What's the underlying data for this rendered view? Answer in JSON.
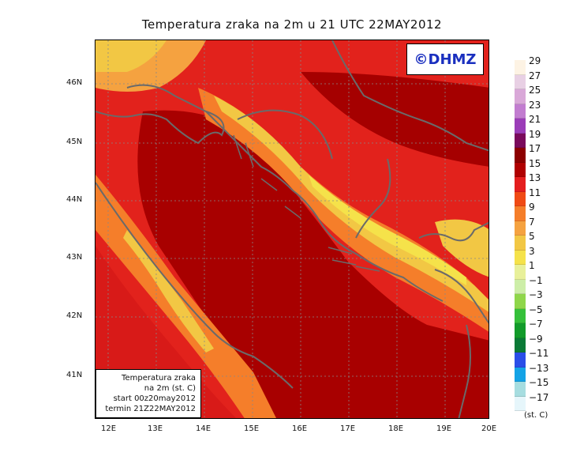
{
  "title": "Temperatura zraka na 2m u 21 UTC 22MAY2012",
  "logo": "©DHMZ",
  "info_box": {
    "line1": "Temperatura zraka",
    "line2": "na 2m (st. C)",
    "line3": "start 00z20may2012",
    "line4": "termin 21Z22MAY2012"
  },
  "lat_labels": [
    "46N",
    "45N",
    "44N",
    "43N",
    "42N",
    "41N"
  ],
  "lon_labels": [
    "12E",
    "13E",
    "14E",
    "15E",
    "16E",
    "17E",
    "18E",
    "19E",
    "20E"
  ],
  "colorbar": {
    "labels": [
      "29",
      "27",
      "25",
      "23",
      "21",
      "19",
      "17",
      "15",
      "13",
      "11",
      "9",
      "7",
      "5",
      "3",
      "1",
      "−1",
      "−3",
      "−5",
      "−7",
      "−9",
      "−11",
      "−13",
      "−15",
      "−17"
    ],
    "colors": [
      "#fdf3e4",
      "#e8d0e4",
      "#d9a8d8",
      "#c27dd0",
      "#9b3db8",
      "#7a0a5c",
      "#8c0000",
      "#b00000",
      "#e41e1e",
      "#f04a14",
      "#f57e2a",
      "#f5a240",
      "#f2c744",
      "#f5e24a",
      "#e8f09a",
      "#cdeea8",
      "#8fd64a",
      "#35c03a",
      "#129b2a",
      "#0a7a36",
      "#2a4ee8",
      "#14a3e6",
      "#a6dde0",
      "#e6f6fb"
    ],
    "unit": "(st. C)"
  }
}
